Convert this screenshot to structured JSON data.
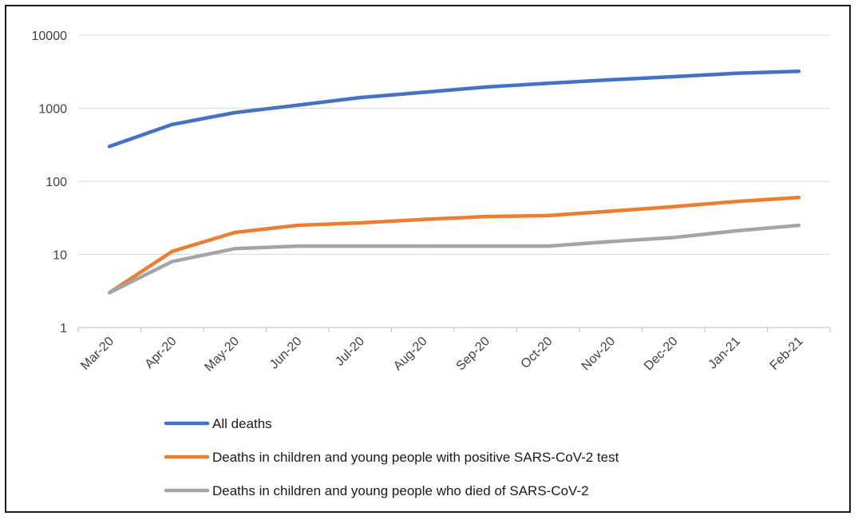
{
  "chart_data": {
    "type": "line",
    "title": "",
    "xlabel": "",
    "ylabel": "",
    "yscale": "log",
    "ylim": [
      1,
      10000
    ],
    "yticks": [
      1,
      10,
      100,
      1000,
      10000
    ],
    "ytick_labels": [
      "1",
      "10",
      "100",
      "1000",
      "10000"
    ],
    "categories": [
      "Mar-20",
      "Apr-20",
      "May-20",
      "Jun-20",
      "Jul-20",
      "Aug-20",
      "Sep-20",
      "Oct-20",
      "Nov-20",
      "Dec-20",
      "Jan-21",
      "Feb-21"
    ],
    "grid": true,
    "legend_position": "bottom",
    "series": [
      {
        "name": "All deaths",
        "color": "#4472C4",
        "values": [
          300,
          600,
          870,
          1100,
          1400,
          1650,
          1950,
          2200,
          2450,
          2700,
          3000,
          3200
        ]
      },
      {
        "name": "Deaths in children and young people with positive SARS-CoV-2 test",
        "color": "#ED7D31",
        "values": [
          3,
          11,
          20,
          25,
          27,
          30,
          33,
          34,
          39,
          45,
          53,
          60
        ]
      },
      {
        "name": "Deaths in children and young people who died of SARS-CoV-2",
        "color": "#A5A5A5",
        "values": [
          3,
          8,
          12,
          13,
          13,
          13,
          13,
          13,
          15,
          17,
          21,
          25
        ]
      }
    ]
  }
}
